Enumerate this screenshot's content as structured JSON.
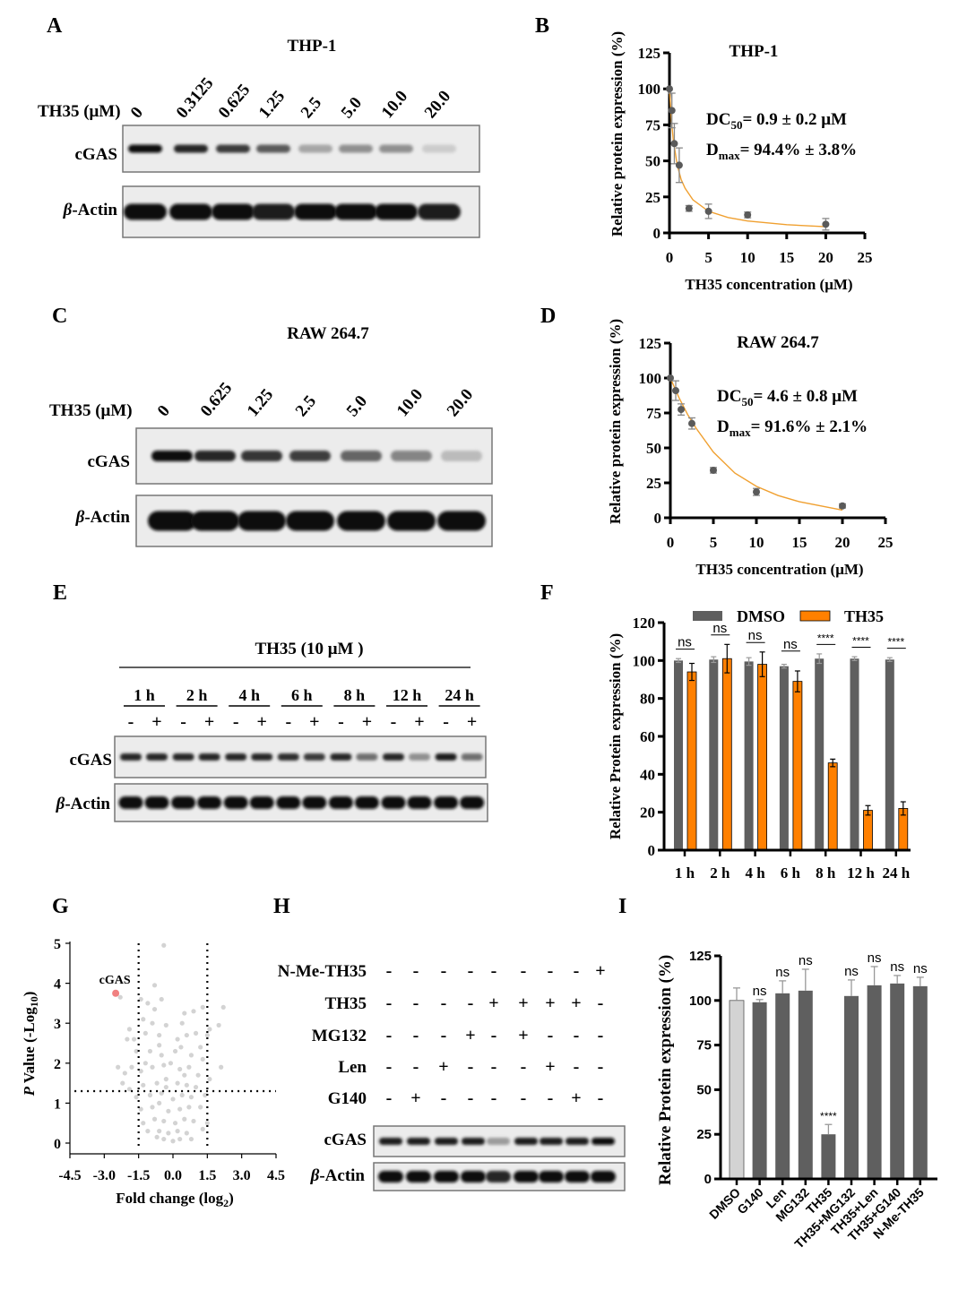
{
  "panels": {
    "A": {
      "letter": "A",
      "title": "THP-1",
      "dose_label": "TH35 (μM)",
      "lanes": [
        "0",
        "0.3125",
        "0.625",
        "1.25",
        "2.5",
        "5.0",
        "10.0",
        "20.0"
      ],
      "blot_labels": {
        "cgas": "cGAS",
        "actin_greek": "β",
        "actin_rest": "-Actin"
      },
      "cgas_intensity": [
        1,
        0.9,
        0.8,
        0.65,
        0.3,
        0.4,
        0.4,
        0.12
      ],
      "actin_intensity": [
        1,
        1,
        1,
        0.95,
        1,
        1,
        1,
        0.95
      ]
    },
    "B": {
      "letter": "B",
      "title": "THP-1",
      "dc_main": "DC",
      "dc_sub": "50",
      "dc_value": "= 0.9 ± 0.2 μM",
      "dmax_main": "D",
      "dmax_sub": "max",
      "dmax_value": "=  94.4% ± 3.8%"
    },
    "C": {
      "letter": "C",
      "title": "RAW 264.7",
      "dose_label": "TH35 (μM)",
      "lanes": [
        "0",
        "0.625",
        "1.25",
        "2.5",
        "5.0",
        "10.0",
        "20.0"
      ],
      "blot_labels": {
        "cgas": "cGAS",
        "actin_greek": "β",
        "actin_rest": "-Actin"
      },
      "cgas_intensity": [
        1,
        0.9,
        0.82,
        0.78,
        0.6,
        0.45,
        0.2
      ],
      "actin_intensity": [
        1,
        1,
        1,
        1,
        1,
        1,
        1
      ]
    },
    "D": {
      "letter": "D",
      "title": "RAW 264.7",
      "dc_main": "DC",
      "dc_sub": "50",
      "dc_value": "= 4.6 ± 0.8 μM",
      "dmax_main": "D",
      "dmax_sub": "max",
      "dmax_value": "=  91.6% ± 2.1%"
    },
    "E": {
      "letter": "E",
      "treatment": "TH35 (10 μM )",
      "times": [
        "1 h",
        "2 h",
        "4 h",
        "6 h",
        "8 h",
        "12 h",
        "24 h"
      ],
      "signs": [
        "-",
        "+"
      ],
      "blot_labels": {
        "cgas": "cGAS",
        "actin_greek": "β",
        "actin_rest": "-Actin"
      },
      "cgas_intensity": [
        0.9,
        0.9,
        0.9,
        0.9,
        0.9,
        0.9,
        0.85,
        0.8,
        0.9,
        0.55,
        0.9,
        0.4,
        0.95,
        0.55
      ],
      "actin_intensity": [
        1,
        1,
        1,
        1,
        1,
        1,
        1,
        1,
        1,
        1,
        1,
        1,
        1,
        1
      ]
    },
    "F": {
      "letter": "F"
    },
    "G": {
      "letter": "G"
    },
    "H": {
      "letter": "H",
      "rows": [
        {
          "label": "N-Me-TH35",
          "signs": [
            "-",
            "-",
            "-",
            "-",
            "-",
            "-",
            "-",
            "-",
            "+"
          ]
        },
        {
          "label": "TH35",
          "signs": [
            "-",
            "-",
            "-",
            "-",
            "+",
            "+",
            "+",
            "+",
            "-"
          ]
        },
        {
          "label": "MG132",
          "signs": [
            "-",
            "-",
            "-",
            "+",
            "-",
            "+",
            "-",
            "-",
            "-"
          ]
        },
        {
          "label": "Len",
          "signs": [
            "-",
            "-",
            "+",
            "-",
            "-",
            "-",
            "+",
            "-",
            "-"
          ]
        },
        {
          "label": "G140",
          "signs": [
            "-",
            "+",
            "-",
            "-",
            "-",
            "-",
            "-",
            "+",
            "-"
          ]
        }
      ],
      "blot_labels": {
        "cgas": "cGAS",
        "actin_greek": "β",
        "actin_rest": "-Actin"
      },
      "cgas_intensity": [
        0.95,
        0.95,
        0.95,
        0.95,
        0.35,
        0.95,
        0.95,
        0.95,
        1
      ],
      "actin_intensity": [
        1,
        1,
        1,
        1,
        0.9,
        1,
        1,
        1,
        1
      ]
    },
    "I": {
      "letter": "I"
    }
  },
  "chart_data": [
    {
      "id": "B",
      "type": "scatter",
      "title": "THP-1",
      "xlabel": "TH35 concentration (μM)",
      "ylabel": "Relative protein expression (%)",
      "xlim": [
        0,
        25
      ],
      "ylim": [
        0,
        125
      ],
      "xticks": [
        0,
        5,
        10,
        15,
        20,
        25
      ],
      "yticks": [
        0,
        25,
        50,
        75,
        100,
        125
      ],
      "x": [
        0,
        0.3125,
        0.625,
        1.25,
        2.5,
        5,
        10,
        20
      ],
      "y": [
        100,
        85,
        62,
        47,
        17,
        15,
        12.5,
        6
      ],
      "err": [
        0,
        12,
        14,
        12,
        2,
        5,
        2,
        4
      ],
      "fit_curve": [
        [
          0,
          100
        ],
        [
          0.25,
          78
        ],
        [
          0.5,
          64
        ],
        [
          1,
          47
        ],
        [
          1.5,
          37
        ],
        [
          2,
          31
        ],
        [
          3,
          23
        ],
        [
          5,
          15
        ],
        [
          7.5,
          10.7
        ],
        [
          10,
          8.3
        ],
        [
          15,
          5.7
        ],
        [
          20,
          4.3
        ]
      ],
      "point_color": "#5a5a5a",
      "fit_color": "#f0a030",
      "grid": false
    },
    {
      "id": "D",
      "type": "scatter",
      "title": "RAW 264.7",
      "xlabel": "TH35 concentration (μM)",
      "ylabel": "Relative protein expression (%)",
      "xlim": [
        0,
        25
      ],
      "ylim": [
        0,
        125
      ],
      "xticks": [
        0,
        5,
        10,
        15,
        20,
        25
      ],
      "yticks": [
        0,
        25,
        50,
        75,
        100,
        125
      ],
      "x": [
        0,
        0.625,
        1.25,
        2.5,
        5,
        10,
        20
      ],
      "y": [
        100,
        91,
        77.5,
        67.5,
        34,
        18.5,
        8.5
      ],
      "err": [
        0,
        7,
        4,
        4,
        2,
        2.5,
        1.5
      ],
      "fit_curve": [
        [
          0,
          100
        ],
        [
          1,
          86
        ],
        [
          2,
          74
        ],
        [
          3,
          64
        ],
        [
          5,
          47
        ],
        [
          7.5,
          32
        ],
        [
          10,
          22.5
        ],
        [
          12.5,
          16
        ],
        [
          15,
          11.5
        ],
        [
          20,
          5.5
        ]
      ],
      "point_color": "#5a5a5a",
      "fit_color": "#f0a030",
      "grid": false
    },
    {
      "id": "F",
      "type": "bar",
      "ylabel": "Relative Protein expression (%)",
      "categories": [
        "1 h",
        "2 h",
        "4 h",
        "6 h",
        "8 h",
        "12 h",
        "24 h"
      ],
      "ylim": [
        0,
        120
      ],
      "yticks": [
        0,
        20,
        40,
        60,
        80,
        100,
        120
      ],
      "series": [
        {
          "name": "DMSO",
          "color": "#5f5f5f",
          "values": [
            100,
            100.5,
            99.5,
            97,
            101,
            101,
            100.5
          ],
          "err": [
            1,
            1.5,
            2,
            1,
            2.5,
            1,
            1
          ]
        },
        {
          "name": "TH35",
          "color": "#ff8000",
          "values": [
            94,
            101,
            98,
            89,
            46,
            21,
            22
          ],
          "err": [
            4.5,
            7.5,
            6.5,
            5.5,
            2,
            2.5,
            3.5
          ]
        }
      ],
      "significance": [
        "ns",
        "ns",
        "ns",
        "ns",
        "****",
        "****",
        "****"
      ],
      "legend": "top",
      "grid": false
    },
    {
      "id": "G",
      "type": "scatter",
      "xlabel_main": "Fold change (log",
      "xlabel_sub": "2",
      "xlabel_end": ")",
      "ylabel_italic": "P",
      "ylabel_main": " Value (-Log",
      "ylabel_sub": "10",
      "ylabel_end": ")",
      "xlim": [
        -4.5,
        4.5
      ],
      "ylim": [
        0,
        5
      ],
      "xticks": [
        "-4.5",
        "-3.0",
        "-1.5",
        "0.0",
        "1.5",
        "3.0",
        "4.5"
      ],
      "yticks": [
        0,
        1,
        2,
        3,
        4,
        5
      ],
      "thresholds": {
        "x": [
          -1.5,
          1.5
        ],
        "y": 1.3
      },
      "highlight": {
        "label": "cGAS",
        "x": -2.5,
        "y": 3.75,
        "color": "#f08080"
      },
      "point_color": "#d3d3d3",
      "points": [
        [
          -0.4,
          4.95
        ],
        [
          -0.8,
          3.95
        ],
        [
          -2.3,
          3.65
        ],
        [
          -1.4,
          3.6
        ],
        [
          -0.5,
          3.6
        ],
        [
          -1.1,
          3.5
        ],
        [
          1.3,
          3.4
        ],
        [
          2.2,
          3.4
        ],
        [
          0.9,
          3.3
        ],
        [
          0.5,
          3.25
        ],
        [
          -0.8,
          3.35
        ],
        [
          -1.3,
          3.1
        ],
        [
          -0.9,
          3.0
        ],
        [
          -0.3,
          2.95
        ],
        [
          0.4,
          3.0
        ],
        [
          2.0,
          2.95
        ],
        [
          1.6,
          2.85
        ],
        [
          -1.9,
          2.85
        ],
        [
          -2.0,
          2.6
        ],
        [
          -1.7,
          2.6
        ],
        [
          -1.2,
          2.75
        ],
        [
          -0.6,
          2.7
        ],
        [
          0.2,
          2.6
        ],
        [
          0.6,
          2.7
        ],
        [
          1.0,
          2.75
        ],
        [
          1.5,
          2.7
        ],
        [
          -1.6,
          2.3
        ],
        [
          -1.0,
          2.3
        ],
        [
          -0.5,
          2.2
        ],
        [
          0.1,
          2.3
        ],
        [
          0.8,
          2.2
        ],
        [
          1.3,
          2.1
        ],
        [
          2.1,
          1.9
        ],
        [
          -2.4,
          1.9
        ],
        [
          -2.1,
          1.75
        ],
        [
          -1.8,
          1.9
        ],
        [
          -1.4,
          1.8
        ],
        [
          -0.9,
          1.9
        ],
        [
          -0.4,
          1.95
        ],
        [
          0.3,
          1.85
        ],
        [
          0.7,
          1.9
        ],
        [
          1.1,
          1.7
        ],
        [
          1.6,
          1.6
        ],
        [
          -2.2,
          1.5
        ],
        [
          -1.9,
          1.35
        ],
        [
          -1.3,
          1.45
        ],
        [
          -0.7,
          1.5
        ],
        [
          -0.3,
          1.6
        ],
        [
          0.2,
          1.5
        ],
        [
          0.6,
          1.45
        ],
        [
          1.0,
          1.4
        ],
        [
          1.4,
          1.2
        ],
        [
          -1.6,
          1.15
        ],
        [
          -1.0,
          1.2
        ],
        [
          -0.5,
          1.25
        ],
        [
          0.0,
          1.1
        ],
        [
          0.4,
          1.2
        ],
        [
          0.8,
          1.15
        ],
        [
          1.2,
          0.9
        ],
        [
          -1.4,
          0.85
        ],
        [
          -0.9,
          0.9
        ],
        [
          -0.6,
          1.0
        ],
        [
          -0.2,
          0.8
        ],
        [
          0.3,
          0.85
        ],
        [
          0.7,
          0.9
        ],
        [
          1.5,
          0.5
        ],
        [
          -1.3,
          0.5
        ],
        [
          -0.8,
          0.6
        ],
        [
          -0.4,
          0.55
        ],
        [
          0.1,
          0.5
        ],
        [
          0.5,
          0.6
        ],
        [
          0.9,
          0.55
        ],
        [
          1.3,
          0.35
        ],
        [
          -1.1,
          0.3
        ],
        [
          -0.6,
          0.3
        ],
        [
          -0.2,
          0.25
        ],
        [
          0.2,
          0.3
        ],
        [
          0.6,
          0.25
        ],
        [
          -0.4,
          0.1
        ],
        [
          0.0,
          0.05
        ],
        [
          0.3,
          0.1
        ],
        [
          -0.7,
          0.15
        ],
        [
          0.8,
          0.1
        ],
        [
          -0.3,
          1.4
        ],
        [
          0.5,
          1.7
        ],
        [
          -0.1,
          2.0
        ],
        [
          -0.6,
          2.45
        ],
        [
          0.35,
          2.4
        ],
        [
          -1.2,
          2.0
        ],
        [
          1.2,
          2.4
        ]
      ],
      "grid": false
    },
    {
      "id": "I",
      "type": "bar",
      "ylabel": "Relative Protein expression (%)",
      "categories": [
        "DMSO",
        "G140",
        "Len",
        "MG132",
        "TH35",
        "TH35+MG132",
        "TH35+Len",
        "TH35+G140",
        "N-Me-TH35"
      ],
      "values": [
        100,
        99,
        104,
        105.5,
        25,
        102.5,
        108.5,
        109.5,
        108
      ],
      "err": [
        7,
        1.5,
        7,
        12,
        5.5,
        9,
        10.5,
        4.5,
        5
      ],
      "significance": [
        "",
        "ns",
        "ns",
        "ns",
        "****",
        "ns",
        "ns",
        "ns",
        "ns"
      ],
      "colors": {
        "control": "#d3d3d3",
        "treated": "#5f5f5f"
      },
      "ylim": [
        0,
        125
      ],
      "yticks": [
        0,
        25,
        50,
        75,
        100,
        125
      ],
      "grid": false
    }
  ]
}
